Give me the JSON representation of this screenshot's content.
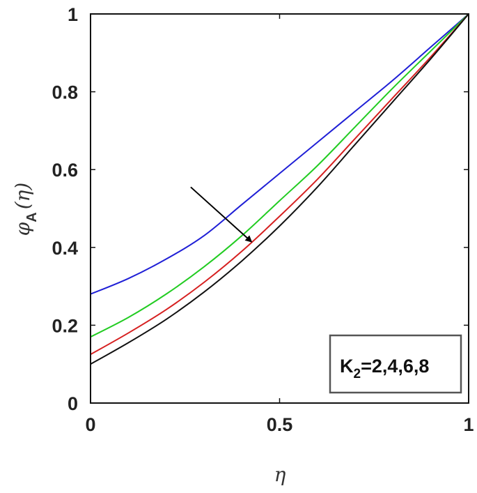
{
  "chart_data": {
    "type": "line",
    "xlabel": "η",
    "ylabel": {
      "main": "φ",
      "sub": "A",
      "arg": "(η)"
    },
    "xlim": [
      0,
      1
    ],
    "ylim": [
      0,
      1
    ],
    "xticks": [
      {
        "value": 0,
        "label": "0"
      },
      {
        "value": 0.5,
        "label": "0.5"
      },
      {
        "value": 1,
        "label": "1"
      }
    ],
    "yticks": [
      {
        "value": 0,
        "label": "0"
      },
      {
        "value": 0.2,
        "label": "0.2"
      },
      {
        "value": 0.4,
        "label": "0.4"
      },
      {
        "value": 0.6,
        "label": "0.6"
      },
      {
        "value": 0.8,
        "label": "0.8"
      },
      {
        "value": 1,
        "label": "1"
      }
    ],
    "grid": false,
    "x": [
      0,
      0.1,
      0.2,
      0.3,
      0.4,
      0.5,
      0.6,
      0.7,
      0.8,
      0.9,
      1.0
    ],
    "series": [
      {
        "color": "#1f1fd6",
        "values": [
          0.28,
          0.32,
          0.37,
          0.43,
          0.51,
          0.59,
          0.67,
          0.75,
          0.83,
          0.915,
          1.0
        ]
      },
      {
        "color": "#22cc22",
        "values": [
          0.17,
          0.22,
          0.28,
          0.35,
          0.43,
          0.52,
          0.61,
          0.71,
          0.81,
          0.905,
          1.0
        ]
      },
      {
        "color": "#d62020",
        "values": [
          0.125,
          0.18,
          0.24,
          0.31,
          0.39,
          0.48,
          0.575,
          0.68,
          0.785,
          0.89,
          1.0
        ]
      },
      {
        "color": "#111111",
        "values": [
          0.1,
          0.155,
          0.215,
          0.285,
          0.365,
          0.455,
          0.555,
          0.665,
          0.775,
          0.885,
          1.0
        ]
      }
    ],
    "annotation": {
      "arrow": {
        "from": [
          0.265,
          0.555
        ],
        "to": [
          0.425,
          0.415
        ],
        "color": "#000000"
      },
      "label": {
        "main": "K",
        "sub": "2",
        "rest": "=2,4,6,8"
      },
      "position": "bottom-right"
    }
  }
}
